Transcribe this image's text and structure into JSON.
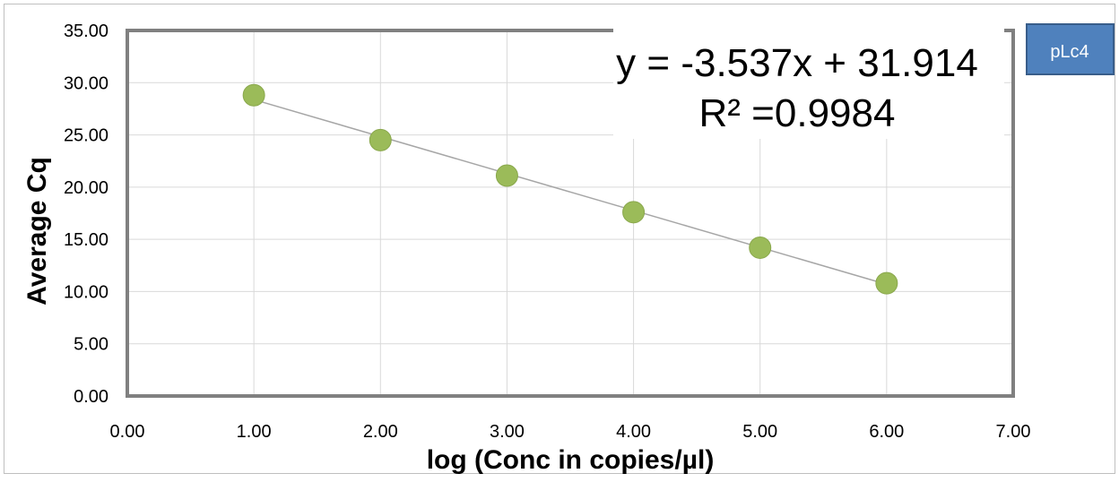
{
  "chart_data": {
    "type": "scatter",
    "title": "",
    "xlabel": "log (Conc in copies/µl)",
    "ylabel": "Average Cq",
    "xlim": [
      0,
      7
    ],
    "ylim": [
      0,
      35
    ],
    "x_ticks": [
      "0.00",
      "1.00",
      "2.00",
      "3.00",
      "4.00",
      "5.00",
      "6.00",
      "7.00"
    ],
    "y_ticks": [
      "0.00",
      "5.00",
      "10.00",
      "15.00",
      "20.00",
      "25.00",
      "30.00",
      "35.00"
    ],
    "grid": true,
    "series": [
      {
        "color": "#9bbb59",
        "x": [
          1,
          2,
          3,
          4,
          5,
          6
        ],
        "y": [
          28.8,
          24.5,
          21.1,
          17.6,
          14.2,
          10.8
        ]
      }
    ],
    "trendline": {
      "type": "linear",
      "slope": -3.537,
      "intercept": 31.914,
      "color": "#a6a6a6",
      "equation": "y = -3.537x + 31.914",
      "r_squared": "R² =0.9984"
    },
    "badge": {
      "label": "pLc4",
      "color": "#4f81bd",
      "border_color": "#385d8a"
    }
  }
}
